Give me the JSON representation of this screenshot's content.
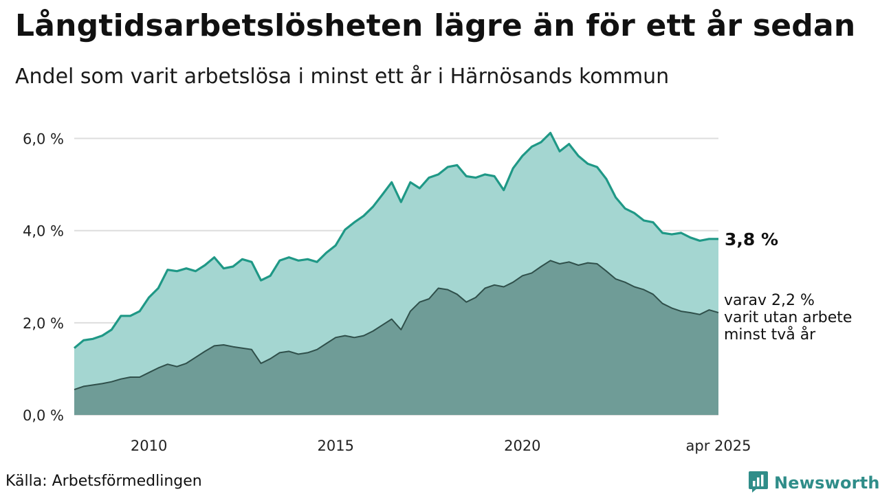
{
  "header": {
    "title": "Långtidsarbetslösheten lägre än för ett år sedan",
    "subtitle": "Andel som varit arbetslösa i minst ett år i Härnösands kommun"
  },
  "footer": {
    "source": "Källa: Arbetsförmedlingen",
    "brand": "Newsworthy"
  },
  "colors": {
    "series1_line": "#1f9886",
    "series1_fill": "#a4d6d1",
    "series2_line": "#2f4f4a",
    "series2_fill": "#6f9c97",
    "grid": "#dddddd",
    "brand": "#2f8d89"
  },
  "icons": {
    "brand_logo": "newsworthy-chart-logo-icon"
  },
  "chart_data": {
    "type": "area",
    "xlim": [
      "2008-01",
      "2025-04"
    ],
    "ylim": [
      0,
      6.5
    ],
    "y_ticks": [
      0,
      2,
      4,
      6
    ],
    "y_tick_labels": [
      "0,0 %",
      "2,0 %",
      "4,0 %",
      "6,0 %"
    ],
    "x_ticks": [
      "2010-01",
      "2015-01",
      "2020-01",
      "2025-04"
    ],
    "x_tick_labels": [
      "2010",
      "2015",
      "2020",
      "apr 2025"
    ],
    "grid": true,
    "legend": "none",
    "series": [
      {
        "label": "3,8 %",
        "points": [
          [
            "2008-01",
            1.45
          ],
          [
            "2008-04",
            1.62
          ],
          [
            "2008-07",
            1.65
          ],
          [
            "2008-10",
            1.72
          ],
          [
            "2009-01",
            1.85
          ],
          [
            "2009-04",
            2.15
          ],
          [
            "2009-07",
            2.15
          ],
          [
            "2009-10",
            2.25
          ],
          [
            "2010-01",
            2.55
          ],
          [
            "2010-04",
            2.75
          ],
          [
            "2010-07",
            3.15
          ],
          [
            "2010-10",
            3.12
          ],
          [
            "2011-01",
            3.18
          ],
          [
            "2011-04",
            3.12
          ],
          [
            "2011-07",
            3.25
          ],
          [
            "2011-10",
            3.42
          ],
          [
            "2012-01",
            3.18
          ],
          [
            "2012-04",
            3.22
          ],
          [
            "2012-07",
            3.38
          ],
          [
            "2012-10",
            3.32
          ],
          [
            "2013-01",
            2.92
          ],
          [
            "2013-04",
            3.02
          ],
          [
            "2013-07",
            3.35
          ],
          [
            "2013-10",
            3.42
          ],
          [
            "2014-01",
            3.35
          ],
          [
            "2014-04",
            3.38
          ],
          [
            "2014-07",
            3.32
          ],
          [
            "2014-10",
            3.52
          ],
          [
            "2015-01",
            3.68
          ],
          [
            "2015-04",
            4.02
          ],
          [
            "2015-07",
            4.18
          ],
          [
            "2015-10",
            4.32
          ],
          [
            "2016-01",
            4.52
          ],
          [
            "2016-04",
            4.78
          ],
          [
            "2016-07",
            5.05
          ],
          [
            "2016-10",
            4.62
          ],
          [
            "2017-01",
            5.05
          ],
          [
            "2017-04",
            4.92
          ],
          [
            "2017-07",
            5.15
          ],
          [
            "2017-10",
            5.22
          ],
          [
            "2018-01",
            5.38
          ],
          [
            "2018-04",
            5.42
          ],
          [
            "2018-07",
            5.18
          ],
          [
            "2018-10",
            5.15
          ],
          [
            "2019-01",
            5.22
          ],
          [
            "2019-04",
            5.18
          ],
          [
            "2019-07",
            4.88
          ],
          [
            "2019-10",
            5.35
          ],
          [
            "2020-01",
            5.62
          ],
          [
            "2020-04",
            5.82
          ],
          [
            "2020-07",
            5.92
          ],
          [
            "2020-10",
            6.12
          ],
          [
            "2021-01",
            5.72
          ],
          [
            "2021-04",
            5.88
          ],
          [
            "2021-07",
            5.62
          ],
          [
            "2021-10",
            5.45
          ],
          [
            "2022-01",
            5.38
          ],
          [
            "2022-04",
            5.12
          ],
          [
            "2022-07",
            4.72
          ],
          [
            "2022-10",
            4.48
          ],
          [
            "2023-01",
            4.38
          ],
          [
            "2023-04",
            4.22
          ],
          [
            "2023-07",
            4.18
          ],
          [
            "2023-10",
            3.95
          ],
          [
            "2024-01",
            3.92
          ],
          [
            "2024-04",
            3.95
          ],
          [
            "2024-07",
            3.85
          ],
          [
            "2024-10",
            3.78
          ],
          [
            "2025-01",
            3.82
          ],
          [
            "2025-04",
            3.82
          ]
        ]
      },
      {
        "label_lines": [
          "varav 2,2 %",
          "varit utan arbete",
          "minst två år"
        ],
        "points": [
          [
            "2008-01",
            0.55
          ],
          [
            "2008-04",
            0.62
          ],
          [
            "2008-07",
            0.65
          ],
          [
            "2008-10",
            0.68
          ],
          [
            "2009-01",
            0.72
          ],
          [
            "2009-04",
            0.78
          ],
          [
            "2009-07",
            0.82
          ],
          [
            "2009-10",
            0.82
          ],
          [
            "2010-01",
            0.92
          ],
          [
            "2010-04",
            1.02
          ],
          [
            "2010-07",
            1.1
          ],
          [
            "2010-10",
            1.05
          ],
          [
            "2011-01",
            1.12
          ],
          [
            "2011-04",
            1.25
          ],
          [
            "2011-07",
            1.38
          ],
          [
            "2011-10",
            1.5
          ],
          [
            "2012-01",
            1.52
          ],
          [
            "2012-04",
            1.48
          ],
          [
            "2012-07",
            1.45
          ],
          [
            "2012-10",
            1.42
          ],
          [
            "2013-01",
            1.12
          ],
          [
            "2013-04",
            1.22
          ],
          [
            "2013-07",
            1.35
          ],
          [
            "2013-10",
            1.38
          ],
          [
            "2014-01",
            1.32
          ],
          [
            "2014-04",
            1.35
          ],
          [
            "2014-07",
            1.42
          ],
          [
            "2014-10",
            1.55
          ],
          [
            "2015-01",
            1.68
          ],
          [
            "2015-04",
            1.72
          ],
          [
            "2015-07",
            1.68
          ],
          [
            "2015-10",
            1.72
          ],
          [
            "2016-01",
            1.82
          ],
          [
            "2016-04",
            1.95
          ],
          [
            "2016-07",
            2.08
          ],
          [
            "2016-10",
            1.85
          ],
          [
            "2017-01",
            2.25
          ],
          [
            "2017-04",
            2.45
          ],
          [
            "2017-07",
            2.52
          ],
          [
            "2017-10",
            2.75
          ],
          [
            "2018-01",
            2.72
          ],
          [
            "2018-04",
            2.62
          ],
          [
            "2018-07",
            2.45
          ],
          [
            "2018-10",
            2.55
          ],
          [
            "2019-01",
            2.75
          ],
          [
            "2019-04",
            2.82
          ],
          [
            "2019-07",
            2.78
          ],
          [
            "2019-10",
            2.88
          ],
          [
            "2020-01",
            3.02
          ],
          [
            "2020-04",
            3.08
          ],
          [
            "2020-07",
            3.22
          ],
          [
            "2020-10",
            3.35
          ],
          [
            "2021-01",
            3.28
          ],
          [
            "2021-04",
            3.32
          ],
          [
            "2021-07",
            3.25
          ],
          [
            "2021-10",
            3.3
          ],
          [
            "2022-01",
            3.28
          ],
          [
            "2022-04",
            3.12
          ],
          [
            "2022-07",
            2.95
          ],
          [
            "2022-10",
            2.88
          ],
          [
            "2023-01",
            2.78
          ],
          [
            "2023-04",
            2.72
          ],
          [
            "2023-07",
            2.62
          ],
          [
            "2023-10",
            2.42
          ],
          [
            "2024-01",
            2.32
          ],
          [
            "2024-04",
            2.25
          ],
          [
            "2024-07",
            2.22
          ],
          [
            "2024-10",
            2.18
          ],
          [
            "2025-01",
            2.28
          ],
          [
            "2025-04",
            2.22
          ]
        ]
      }
    ]
  }
}
